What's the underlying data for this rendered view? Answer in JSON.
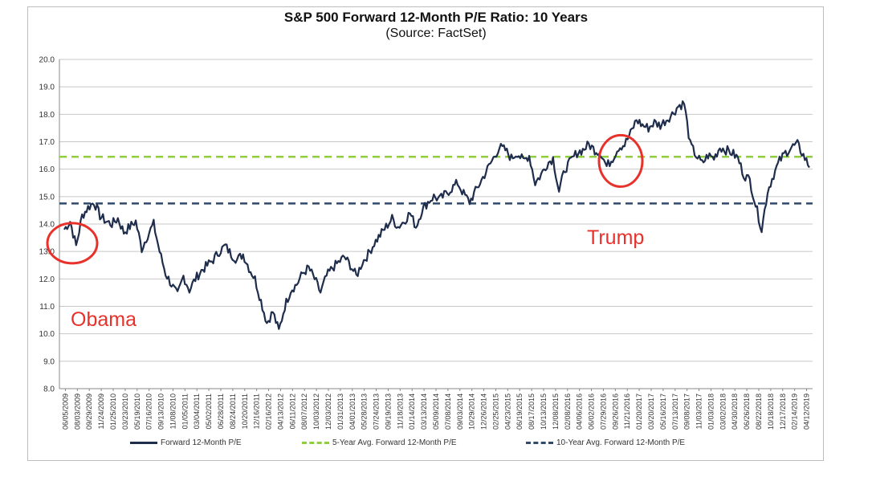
{
  "chart_data": {
    "type": "line",
    "title": "S&P 500 Forward 12-Month P/E Ratio: 10 Years",
    "subtitle": "(Source: FactSet)",
    "ylim": [
      8.0,
      20.0
    ],
    "yticks": [
      "8.0",
      "9.0",
      "10.0",
      "11.0",
      "12.0",
      "13.0",
      "14.0",
      "15.0",
      "16.0",
      "17.0",
      "18.0",
      "19.0",
      "20.0"
    ],
    "grid": true,
    "xticks": [
      "06/05/2009",
      "08/03/2009",
      "09/29/2009",
      "11/24/2009",
      "01/25/2010",
      "03/23/2010",
      "05/19/2010",
      "07/16/2010",
      "09/13/2010",
      "11/08/2010",
      "01/05/2011",
      "03/04/2011",
      "05/02/2011",
      "06/28/2011",
      "08/24/2011",
      "10/20/2011",
      "12/16/2011",
      "02/16/2012",
      "04/13/2012",
      "06/11/2012",
      "08/07/2012",
      "10/03/2012",
      "12/03/2012",
      "01/31/2013",
      "04/01/2013",
      "05/28/2013",
      "07/24/2013",
      "09/19/2013",
      "11/18/2013",
      "01/14/2014",
      "03/13/2014",
      "05/09/2014",
      "07/08/2014",
      "09/03/2014",
      "10/29/2014",
      "12/26/2014",
      "02/25/2015",
      "04/23/2015",
      "06/19/2015",
      "08/17/2015",
      "10/13/2015",
      "12/08/2015",
      "02/08/2016",
      "04/06/2016",
      "06/02/2016",
      "07/29/2016",
      "09/26/2016",
      "11/21/2016",
      "01/20/2017",
      "03/20/2017",
      "05/16/2017",
      "07/13/2017",
      "09/08/2017",
      "11/03/2017",
      "01/03/2018",
      "03/02/2018",
      "04/30/2018",
      "06/26/2018",
      "08/22/2018",
      "10/18/2018",
      "12/17/2018",
      "02/14/2019",
      "04/12/2019"
    ],
    "legend_position": "bottom",
    "series": [
      {
        "name": "Forward 12-Month P/E",
        "color": "#1f2d4d",
        "style": "solid",
        "values": [
          13.8,
          14.1,
          13.2,
          14.3,
          14.6,
          14.8,
          14.3,
          14.1,
          14.0,
          14.2,
          13.7,
          13.9,
          14.1,
          13.1,
          13.6,
          14.0,
          13.0,
          12.2,
          11.8,
          11.4,
          12.1,
          11.6,
          12.0,
          12.3,
          12.5,
          12.7,
          13.0,
          13.2,
          12.9,
          12.7,
          12.9,
          12.4,
          12.0,
          11.2,
          10.4,
          10.8,
          10.1,
          11.0,
          11.6,
          11.8,
          12.2,
          12.4,
          12.0,
          11.5,
          12.1,
          12.4,
          12.6,
          12.8,
          12.5,
          12.1,
          12.6,
          12.9,
          13.3,
          13.6,
          13.9,
          14.2,
          13.9,
          14.1,
          14.4,
          13.9,
          14.5,
          14.8,
          15.0,
          14.9,
          15.1,
          15.3,
          15.5,
          15.1,
          14.8,
          15.2,
          15.6,
          16.0,
          16.4,
          16.8,
          16.7,
          16.4,
          16.6,
          16.3,
          16.5,
          15.5,
          15.8,
          16.2,
          16.4,
          15.2,
          16.0,
          16.3,
          16.6,
          16.7,
          16.9,
          16.7,
          16.6,
          16.1,
          16.4,
          16.8,
          16.9,
          17.3,
          17.8,
          17.6,
          17.5,
          17.7,
          17.6,
          17.8,
          18.0,
          18.3,
          18.4,
          16.9,
          16.5,
          16.2,
          16.5,
          16.4,
          16.8,
          16.7,
          16.6,
          16.4,
          15.8,
          15.6,
          14.7,
          13.8,
          15.2,
          15.8,
          16.3,
          16.6,
          16.8,
          16.9,
          16.5,
          16.1
        ]
      },
      {
        "name": "5-Year Avg. Forward 12-Month P/E",
        "color": "#8fce3c",
        "style": "dashed",
        "value": 16.45
      },
      {
        "name": "10-Year Avg. Forward 12-Month P/E",
        "color": "#2f4a6b",
        "style": "dashed",
        "value": 14.75
      }
    ],
    "annotations": [
      {
        "text": "Obama",
        "color": "#e8312b",
        "circle_at_value": 13.3
      },
      {
        "text": "Trump",
        "color": "#e8312b",
        "circle_at_value": 16.3
      }
    ]
  }
}
